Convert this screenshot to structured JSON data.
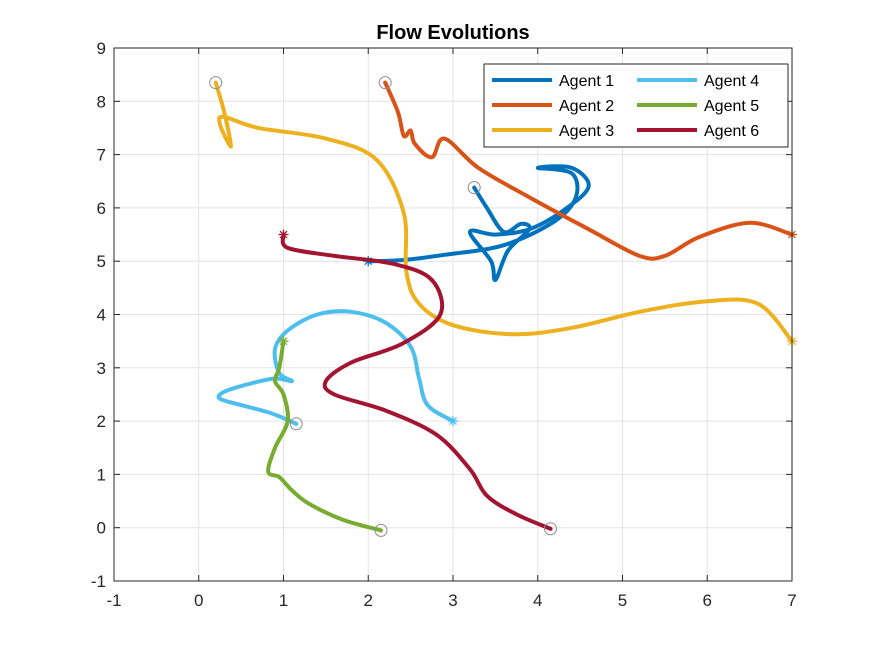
{
  "chart_data": {
    "type": "line",
    "title": "Flow Evolutions",
    "xlabel": "",
    "ylabel": "",
    "xlim": [
      -1,
      7
    ],
    "ylim": [
      -1,
      9
    ],
    "xticks": [
      -1,
      0,
      1,
      2,
      3,
      4,
      5,
      6,
      7
    ],
    "yticks": [
      -1,
      0,
      1,
      2,
      3,
      4,
      5,
      6,
      7,
      8,
      9
    ],
    "grid": true,
    "legend_position": "top-right",
    "series": [
      {
        "name": "Agent 1",
        "color": "#0072BD",
        "start": [
          3.25,
          6.38
        ],
        "end": [
          2.0,
          5.0
        ],
        "points": [
          [
            3.25,
            6.38
          ],
          [
            3.4,
            6.0
          ],
          [
            3.6,
            5.55
          ],
          [
            3.8,
            5.7
          ],
          [
            3.9,
            5.6
          ],
          [
            3.65,
            5.2
          ],
          [
            3.5,
            4.65
          ],
          [
            3.45,
            5.0
          ],
          [
            3.2,
            5.55
          ],
          [
            3.5,
            5.5
          ],
          [
            3.9,
            5.6
          ],
          [
            4.3,
            5.95
          ],
          [
            4.6,
            6.4
          ],
          [
            4.4,
            6.75
          ],
          [
            4.0,
            6.75
          ],
          [
            4.4,
            6.65
          ],
          [
            4.45,
            6.2
          ],
          [
            4.2,
            5.75
          ],
          [
            3.6,
            5.3
          ],
          [
            2.9,
            5.12
          ],
          [
            2.4,
            5.02
          ],
          [
            2.0,
            5.0
          ]
        ]
      },
      {
        "name": "Agent 2",
        "color": "#D95319",
        "start": [
          2.2,
          8.35
        ],
        "end": [
          7.0,
          5.5
        ],
        "points": [
          [
            2.2,
            8.35
          ],
          [
            2.35,
            7.8
          ],
          [
            2.42,
            7.35
          ],
          [
            2.5,
            7.45
          ],
          [
            2.55,
            7.2
          ],
          [
            2.75,
            6.95
          ],
          [
            2.9,
            7.3
          ],
          [
            3.3,
            6.75
          ],
          [
            3.9,
            6.2
          ],
          [
            4.6,
            5.6
          ],
          [
            5.2,
            5.1
          ],
          [
            5.5,
            5.1
          ],
          [
            5.9,
            5.45
          ],
          [
            6.5,
            5.72
          ],
          [
            7.0,
            5.5
          ]
        ]
      },
      {
        "name": "Agent 3",
        "color": "#EDB120",
        "start": [
          0.2,
          8.35
        ],
        "end": [
          7.0,
          3.5
        ],
        "points": [
          [
            0.2,
            8.35
          ],
          [
            0.3,
            7.8
          ],
          [
            0.38,
            7.15
          ],
          [
            0.25,
            7.7
          ],
          [
            0.7,
            7.5
          ],
          [
            1.5,
            7.3
          ],
          [
            2.1,
            6.9
          ],
          [
            2.42,
            5.9
          ],
          [
            2.45,
            4.8
          ],
          [
            2.6,
            4.2
          ],
          [
            3.0,
            3.8
          ],
          [
            3.7,
            3.63
          ],
          [
            4.4,
            3.75
          ],
          [
            5.2,
            4.05
          ],
          [
            6.0,
            4.25
          ],
          [
            6.6,
            4.2
          ],
          [
            7.0,
            3.5
          ]
        ]
      },
      {
        "name": "Agent 4",
        "color": "#4DBEEE",
        "start": [
          1.15,
          1.95
        ],
        "end": [
          3.0,
          2.0
        ],
        "points": [
          [
            1.15,
            1.95
          ],
          [
            0.85,
            2.15
          ],
          [
            0.5,
            2.3
          ],
          [
            0.25,
            2.42
          ],
          [
            0.3,
            2.55
          ],
          [
            0.6,
            2.7
          ],
          [
            0.9,
            2.8
          ],
          [
            1.1,
            2.75
          ],
          [
            0.95,
            2.9
          ],
          [
            0.9,
            3.35
          ],
          [
            1.05,
            3.7
          ],
          [
            1.4,
            4.0
          ],
          [
            1.8,
            4.05
          ],
          [
            2.2,
            3.85
          ],
          [
            2.5,
            3.4
          ],
          [
            2.6,
            2.8
          ],
          [
            2.7,
            2.3
          ],
          [
            3.0,
            2.0
          ]
        ]
      },
      {
        "name": "Agent 5",
        "color": "#77AC30",
        "start": [
          2.15,
          -0.05
        ],
        "end": [
          1.0,
          3.5
        ],
        "points": [
          [
            2.15,
            -0.05
          ],
          [
            1.7,
            0.15
          ],
          [
            1.3,
            0.45
          ],
          [
            1.1,
            0.7
          ],
          [
            0.95,
            0.95
          ],
          [
            0.82,
            1.05
          ],
          [
            0.9,
            1.5
          ],
          [
            1.05,
            2.0
          ],
          [
            1.0,
            2.5
          ],
          [
            0.9,
            2.75
          ],
          [
            0.95,
            3.0
          ],
          [
            1.0,
            3.5
          ]
        ]
      },
      {
        "name": "Agent 6",
        "color": "#A2142F",
        "start": [
          4.15,
          -0.02
        ],
        "end": [
          1.0,
          5.5
        ],
        "points": [
          [
            4.15,
            -0.02
          ],
          [
            3.75,
            0.25
          ],
          [
            3.4,
            0.6
          ],
          [
            3.2,
            1.1
          ],
          [
            2.8,
            1.75
          ],
          [
            2.2,
            2.2
          ],
          [
            1.6,
            2.5
          ],
          [
            1.5,
            2.75
          ],
          [
            1.8,
            3.1
          ],
          [
            2.4,
            3.45
          ],
          [
            2.85,
            4.0
          ],
          [
            2.75,
            4.65
          ],
          [
            2.3,
            4.95
          ],
          [
            1.6,
            5.1
          ],
          [
            1.05,
            5.25
          ],
          [
            1.0,
            5.5
          ]
        ]
      }
    ]
  }
}
